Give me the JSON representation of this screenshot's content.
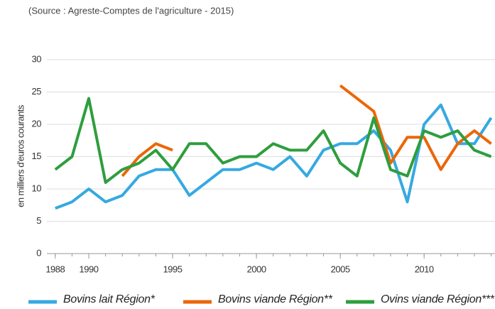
{
  "chart_data": {
    "type": "line",
    "subtitle": "(Source : Agreste-Comptes de l'agriculture - 2015)",
    "y_label": "en milliers d'euros courants",
    "x": [
      1988,
      1989,
      1990,
      1991,
      1992,
      1993,
      1994,
      1995,
      1996,
      1997,
      1998,
      1999,
      2000,
      2001,
      2002,
      2003,
      2004,
      2005,
      2006,
      2007,
      2008,
      2009,
      2010,
      2011,
      2012,
      2013,
      2014
    ],
    "series": [
      {
        "name": "Bovins lait Région*",
        "color": "#36a9e1",
        "values": [
          7,
          8,
          10,
          8,
          9,
          12,
          13,
          13,
          9,
          11,
          13,
          13,
          14,
          13,
          15,
          12,
          16,
          17,
          17,
          19,
          16,
          8,
          20,
          23,
          17,
          17,
          21
        ]
      },
      {
        "name": "Bovins viande Région**",
        "color": "#ec6608",
        "values": [
          null,
          null,
          null,
          null,
          12,
          15,
          17,
          16,
          null,
          null,
          null,
          null,
          null,
          null,
          null,
          null,
          null,
          26,
          24,
          22,
          14,
          18,
          18,
          13,
          17,
          19,
          17
        ]
      },
      {
        "name": "Ovins viande Région***",
        "color": "#2e9e3e",
        "values": [
          13,
          15,
          24,
          11,
          13,
          14,
          16,
          13,
          17,
          17,
          14,
          15,
          15,
          17,
          16,
          16,
          19,
          14,
          12,
          21,
          13,
          12,
          19,
          18,
          19,
          16,
          15
        ]
      }
    ],
    "xlim": [
      1987.5,
      2015.5
    ],
    "xticks": [
      1988,
      1990,
      1995,
      2000,
      2005,
      2010,
      2015
    ],
    "ylim": [
      0,
      30
    ],
    "yticks": [
      0,
      5,
      10,
      15,
      20,
      25,
      30
    ],
    "grid": true
  }
}
